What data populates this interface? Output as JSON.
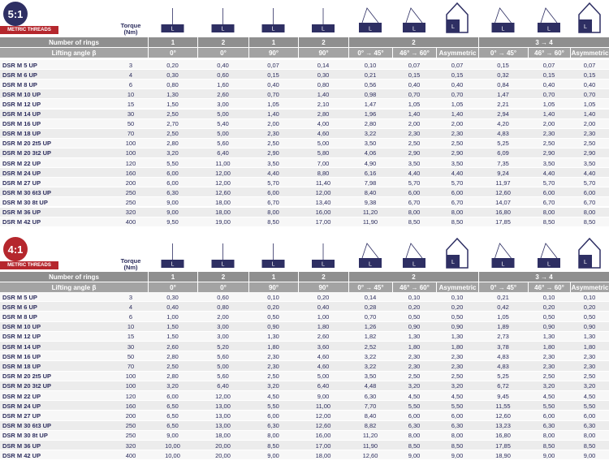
{
  "icon_label": "L",
  "sections": [
    {
      "ratio": "5:1",
      "badge": "METRIC THREADS",
      "torque_header": "Torque (Nm)",
      "rings_label": "Number of rings",
      "angle_label": "Lifting angle β",
      "rings": [
        "1",
        "2",
        "1",
        "2",
        "2",
        "3 → 4"
      ],
      "angles": [
        "0°",
        "0°",
        "90°",
        "90°",
        "0° → 45°",
        "46° → 60°",
        "Asymmetric",
        "0° → 45°",
        "46° → 60°",
        "Asymmetric"
      ],
      "rows": [
        [
          "DSR M 5 UP",
          "3",
          "0,20",
          "0,40",
          "0,07",
          "0,14",
          "0,10",
          "0,07",
          "0,07",
          "0,15",
          "0,07",
          "0,07"
        ],
        [
          "DSR M 6 UP",
          "4",
          "0,30",
          "0,60",
          "0,15",
          "0,30",
          "0,21",
          "0,15",
          "0,15",
          "0,32",
          "0,15",
          "0,15"
        ],
        [
          "DSR M 8 UP",
          "6",
          "0,80",
          "1,60",
          "0,40",
          "0,80",
          "0,56",
          "0,40",
          "0,40",
          "0,84",
          "0,40",
          "0,40"
        ],
        [
          "DSR M 10 UP",
          "10",
          "1,30",
          "2,60",
          "0,70",
          "1,40",
          "0,98",
          "0,70",
          "0,70",
          "1,47",
          "0,70",
          "0,70"
        ],
        [
          "DSR M 12 UP",
          "15",
          "1,50",
          "3,00",
          "1,05",
          "2,10",
          "1,47",
          "1,05",
          "1,05",
          "2,21",
          "1,05",
          "1,05"
        ],
        [
          "DSR M 14 UP",
          "30",
          "2,50",
          "5,00",
          "1,40",
          "2,80",
          "1,96",
          "1,40",
          "1,40",
          "2,94",
          "1,40",
          "1,40"
        ],
        [
          "DSR M 16 UP",
          "50",
          "2,70",
          "5,40",
          "2,00",
          "4,00",
          "2,80",
          "2,00",
          "2,00",
          "4,20",
          "2,00",
          "2,00"
        ],
        [
          "DSR M 18 UP",
          "70",
          "2,50",
          "5,00",
          "2,30",
          "4,60",
          "3,22",
          "2,30",
          "2,30",
          "4,83",
          "2,30",
          "2,30"
        ],
        [
          "DSR M 20 2t5 UP",
          "100",
          "2,80",
          "5,60",
          "2,50",
          "5,00",
          "3,50",
          "2,50",
          "2,50",
          "5,25",
          "2,50",
          "2,50"
        ],
        [
          "DSR M 20 3t2 UP",
          "100",
          "3,20",
          "6,40",
          "2,90",
          "5,80",
          "4,06",
          "2,90",
          "2,90",
          "6,09",
          "2,90",
          "2,90"
        ],
        [
          "DSR M 22 UP",
          "120",
          "5,50",
          "11,00",
          "3,50",
          "7,00",
          "4,90",
          "3,50",
          "3,50",
          "7,35",
          "3,50",
          "3,50"
        ],
        [
          "DSR M 24 UP",
          "160",
          "6,00",
          "12,00",
          "4,40",
          "8,80",
          "6,16",
          "4,40",
          "4,40",
          "9,24",
          "4,40",
          "4,40"
        ],
        [
          "DSR M 27 UP",
          "200",
          "6,00",
          "12,00",
          "5,70",
          "11,40",
          "7,98",
          "5,70",
          "5,70",
          "11,97",
          "5,70",
          "5,70"
        ],
        [
          "DSR M 30 6t3 UP",
          "250",
          "6,30",
          "12,60",
          "6,00",
          "12,00",
          "8,40",
          "6,00",
          "6,00",
          "12,60",
          "6,00",
          "6,00"
        ],
        [
          "DSR M 30 8t UP",
          "250",
          "9,00",
          "18,00",
          "6,70",
          "13,40",
          "9,38",
          "6,70",
          "6,70",
          "14,07",
          "6,70",
          "6,70"
        ],
        [
          "DSR M 36 UP",
          "320",
          "9,00",
          "18,00",
          "8,00",
          "16,00",
          "11,20",
          "8,00",
          "8,00",
          "16,80",
          "8,00",
          "8,00"
        ],
        [
          "DSR M 42 UP",
          "400",
          "9,50",
          "19,00",
          "8,50",
          "17,00",
          "11,90",
          "8,50",
          "8,50",
          "17,85",
          "8,50",
          "8,50"
        ]
      ]
    },
    {
      "ratio": "4:1",
      "badge": "METRIC THREADS",
      "torque_header": "Torque (Nm)",
      "rings_label": "Number of rings",
      "angle_label": "Lifting angle β",
      "rings": [
        "1",
        "2",
        "1",
        "2",
        "2",
        "3 → 4"
      ],
      "angles": [
        "0°",
        "0°",
        "90°",
        "90°",
        "0° → 45°",
        "46° → 60°",
        "Asymmetric",
        "0° → 45°",
        "46° → 60°",
        "Asymmetric"
      ],
      "rows": [
        [
          "DSR M 5 UP",
          "3",
          "0,30",
          "0,60",
          "0,10",
          "0,20",
          "0,14",
          "0,10",
          "0,10",
          "0,21",
          "0,10",
          "0,10"
        ],
        [
          "DSR M 6 UP",
          "4",
          "0,40",
          "0,80",
          "0,20",
          "0,40",
          "0,28",
          "0,20",
          "0,20",
          "0,42",
          "0,20",
          "0,20"
        ],
        [
          "DSR M 8 UP",
          "6",
          "1,00",
          "2,00",
          "0,50",
          "1,00",
          "0,70",
          "0,50",
          "0,50",
          "1,05",
          "0,50",
          "0,50"
        ],
        [
          "DSR M 10 UP",
          "10",
          "1,50",
          "3,00",
          "0,90",
          "1,80",
          "1,26",
          "0,90",
          "0,90",
          "1,89",
          "0,90",
          "0,90"
        ],
        [
          "DSR M 12 UP",
          "15",
          "1,50",
          "3,00",
          "1,30",
          "2,60",
          "1,82",
          "1,30",
          "1,30",
          "2,73",
          "1,30",
          "1,30"
        ],
        [
          "DSR M 14 UP",
          "30",
          "2,60",
          "5,20",
          "1,80",
          "3,60",
          "2,52",
          "1,80",
          "1,80",
          "3,78",
          "1,80",
          "1,80"
        ],
        [
          "DSR M 16 UP",
          "50",
          "2,80",
          "5,60",
          "2,30",
          "4,60",
          "3,22",
          "2,30",
          "2,30",
          "4,83",
          "2,30",
          "2,30"
        ],
        [
          "DSR M 18 UP",
          "70",
          "2,50",
          "5,00",
          "2,30",
          "4,60",
          "3,22",
          "2,30",
          "2,30",
          "4,83",
          "2,30",
          "2,30"
        ],
        [
          "DSR M 20 2t5 UP",
          "100",
          "2,80",
          "5,60",
          "2,50",
          "5,00",
          "3,50",
          "2,50",
          "2,50",
          "5,25",
          "2,50",
          "2,50"
        ],
        [
          "DSR M 20 3t2 UP",
          "100",
          "3,20",
          "6,40",
          "3,20",
          "6,40",
          "4,48",
          "3,20",
          "3,20",
          "6,72",
          "3,20",
          "3,20"
        ],
        [
          "DSR M 22 UP",
          "120",
          "6,00",
          "12,00",
          "4,50",
          "9,00",
          "6,30",
          "4,50",
          "4,50",
          "9,45",
          "4,50",
          "4,50"
        ],
        [
          "DSR M 24 UP",
          "160",
          "6,50",
          "13,00",
          "5,50",
          "11,00",
          "7,70",
          "5,50",
          "5,50",
          "11,55",
          "5,50",
          "5,50"
        ],
        [
          "DSR M 27 UP",
          "200",
          "6,50",
          "13,00",
          "6,00",
          "12,00",
          "8,40",
          "6,00",
          "6,00",
          "12,60",
          "6,00",
          "6,00"
        ],
        [
          "DSR M 30 6t3 UP",
          "250",
          "6,50",
          "13,00",
          "6,30",
          "12,60",
          "8,82",
          "6,30",
          "6,30",
          "13,23",
          "6,30",
          "6,30"
        ],
        [
          "DSR M 30 8t UP",
          "250",
          "9,00",
          "18,00",
          "8,00",
          "16,00",
          "11,20",
          "8,00",
          "8,00",
          "16,80",
          "8,00",
          "8,00"
        ],
        [
          "DSR M 36 UP",
          "320",
          "10,00",
          "20,00",
          "8,50",
          "17,00",
          "11,90",
          "8,50",
          "8,50",
          "17,85",
          "8,50",
          "8,50"
        ],
        [
          "DSR M 42 UP",
          "400",
          "10,00",
          "20,00",
          "9,00",
          "18,00",
          "12,60",
          "9,00",
          "9,00",
          "18,90",
          "9,00",
          "9,00"
        ]
      ]
    }
  ]
}
